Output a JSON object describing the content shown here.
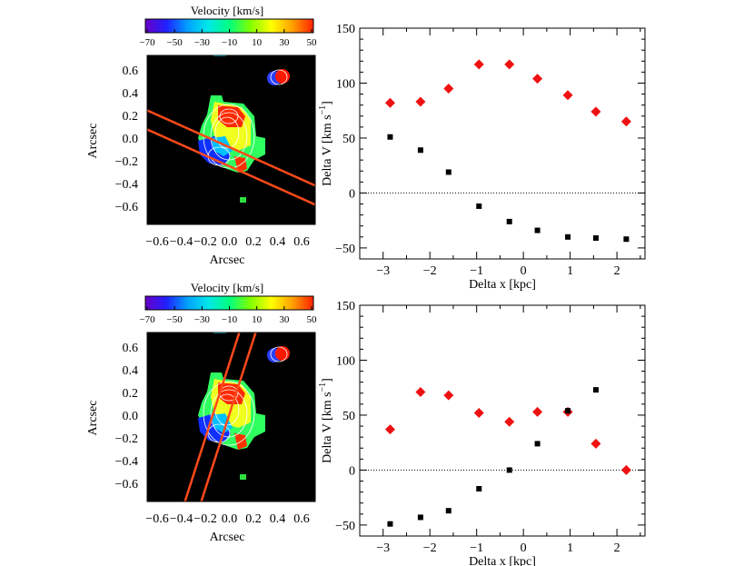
{
  "maps": {
    "colorbar_title": "Velocity [km/s]",
    "colorbar_ticks": [
      "−70",
      "−50",
      "−30",
      "−10",
      "10",
      "30",
      "50"
    ],
    "x_ticks": [
      "−0.6",
      "−0.4",
      "−0.2",
      "0.0",
      "0.2",
      "0.4",
      "0.6"
    ],
    "y_ticks": [
      "0.6",
      "0.4",
      "0.2",
      "0.0",
      "−0.2",
      "−0.4",
      "−0.6"
    ],
    "xlabel": "Arcsec",
    "ylabel": "Arcsec",
    "colormap": [
      "#6a00c8",
      "#2020ff",
      "#00a0ff",
      "#00e8e8",
      "#00ff80",
      "#80ff00",
      "#ffff00",
      "#ffa000",
      "#ff2000"
    ],
    "line_color": "#ff4a1a",
    "background_color": "#000000"
  },
  "chart_data": [
    {
      "type": "scatter",
      "title": "",
      "xlabel": "Delta x [kpc]",
      "ylabel": "Delta V [km s",
      "ylabel_superscript": "−1",
      "ylabel_suffix": "]",
      "xlim": [
        -3.5,
        2.6
      ],
      "ylim": [
        -60,
        150
      ],
      "x_ticks": [
        -3,
        -2,
        -1,
        0,
        1,
        2
      ],
      "x_tick_labels": [
        "−3",
        "−2",
        "−1",
        "0",
        "1",
        "2"
      ],
      "y_ticks": [
        -50,
        0,
        50,
        100,
        150
      ],
      "y_tick_labels": [
        "−50",
        "0",
        "50",
        "100",
        "150"
      ],
      "zero_line": "dotted",
      "series": [
        {
          "marker": "diamond",
          "color": "#ee1111",
          "x": [
            -2.85,
            -2.2,
            -1.6,
            -0.95,
            -0.3,
            0.3,
            0.95,
            1.55,
            2.2
          ],
          "y": [
            82,
            83,
            95,
            117,
            117,
            104,
            89,
            74,
            65
          ]
        },
        {
          "marker": "square",
          "color": "#000000",
          "x": [
            -2.85,
            -2.2,
            -1.6,
            -0.95,
            -0.3,
            0.3,
            0.95,
            1.55,
            2.2
          ],
          "y": [
            51,
            39,
            19,
            -12,
            -26,
            -34,
            -40,
            -41,
            -42
          ]
        }
      ]
    },
    {
      "type": "scatter",
      "title": "",
      "xlabel": "Delta x [kpc]",
      "ylabel": "Delta V [km s",
      "ylabel_superscript": "−1",
      "ylabel_suffix": "]",
      "xlim": [
        -3.5,
        2.6
      ],
      "ylim": [
        -60,
        150
      ],
      "x_ticks": [
        -3,
        -2,
        -1,
        0,
        1,
        2
      ],
      "x_tick_labels": [
        "−3",
        "−2",
        "−1",
        "0",
        "1",
        "2"
      ],
      "y_ticks": [
        -50,
        0,
        50,
        100,
        150
      ],
      "y_tick_labels": [
        "−50",
        "0",
        "50",
        "100",
        "150"
      ],
      "zero_line": "dotted",
      "series": [
        {
          "marker": "diamond",
          "color": "#ee1111",
          "x": [
            -2.85,
            -2.2,
            -1.6,
            -0.95,
            -0.3,
            0.3,
            0.95,
            1.55,
            2.2
          ],
          "y": [
            37,
            71,
            68,
            52,
            44,
            53,
            53,
            24,
            0
          ]
        },
        {
          "marker": "square",
          "color": "#000000",
          "x": [
            -2.85,
            -2.2,
            -1.6,
            -0.95,
            -0.3,
            0.3,
            0.95,
            1.55
          ],
          "y": [
            -49,
            -43,
            -37,
            -17,
            0,
            24,
            54,
            73
          ]
        }
      ]
    }
  ]
}
